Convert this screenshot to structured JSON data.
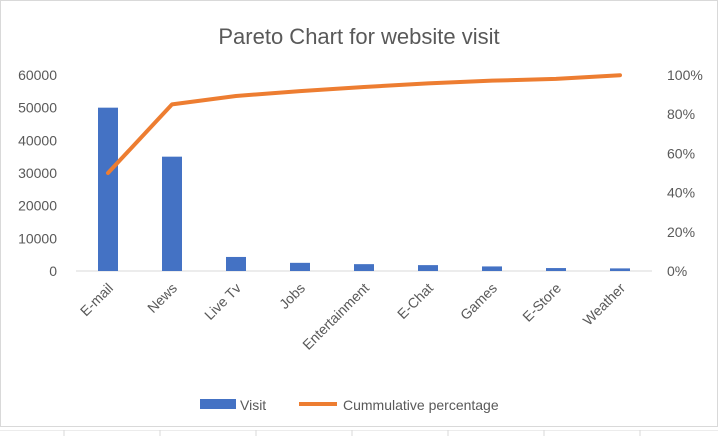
{
  "chart_data": {
    "type": "bar",
    "title": "Pareto Chart for website visit",
    "categories": [
      "E-mail",
      "News",
      "Live Tv",
      "Jobs",
      "Entertainment",
      "E-Chat",
      "Games",
      "E-Store",
      "Weather"
    ],
    "series": [
      {
        "name": "Visit",
        "type": "bar",
        "axis": "left",
        "color": "#4472C4",
        "values": [
          50000,
          35000,
          4300,
          2500,
          2100,
          1800,
          1400,
          900,
          800
        ]
      },
      {
        "name": "Cummulative percentage",
        "type": "line",
        "axis": "right",
        "color": "#ED7D31",
        "values": [
          0.5,
          0.85,
          0.893,
          0.918,
          0.939,
          0.957,
          0.971,
          0.98,
          0.999
        ]
      }
    ],
    "y_left": {
      "ylim": [
        0,
        60000
      ],
      "ticks": [
        "0",
        "10000",
        "20000",
        "30000",
        "40000",
        "50000",
        "60000"
      ]
    },
    "y_right": {
      "ylim": [
        0,
        1
      ],
      "ticks": [
        "0%",
        "20%",
        "40%",
        "60%",
        "80%",
        "100%"
      ]
    },
    "grid": false,
    "legend_position": "bottom"
  }
}
